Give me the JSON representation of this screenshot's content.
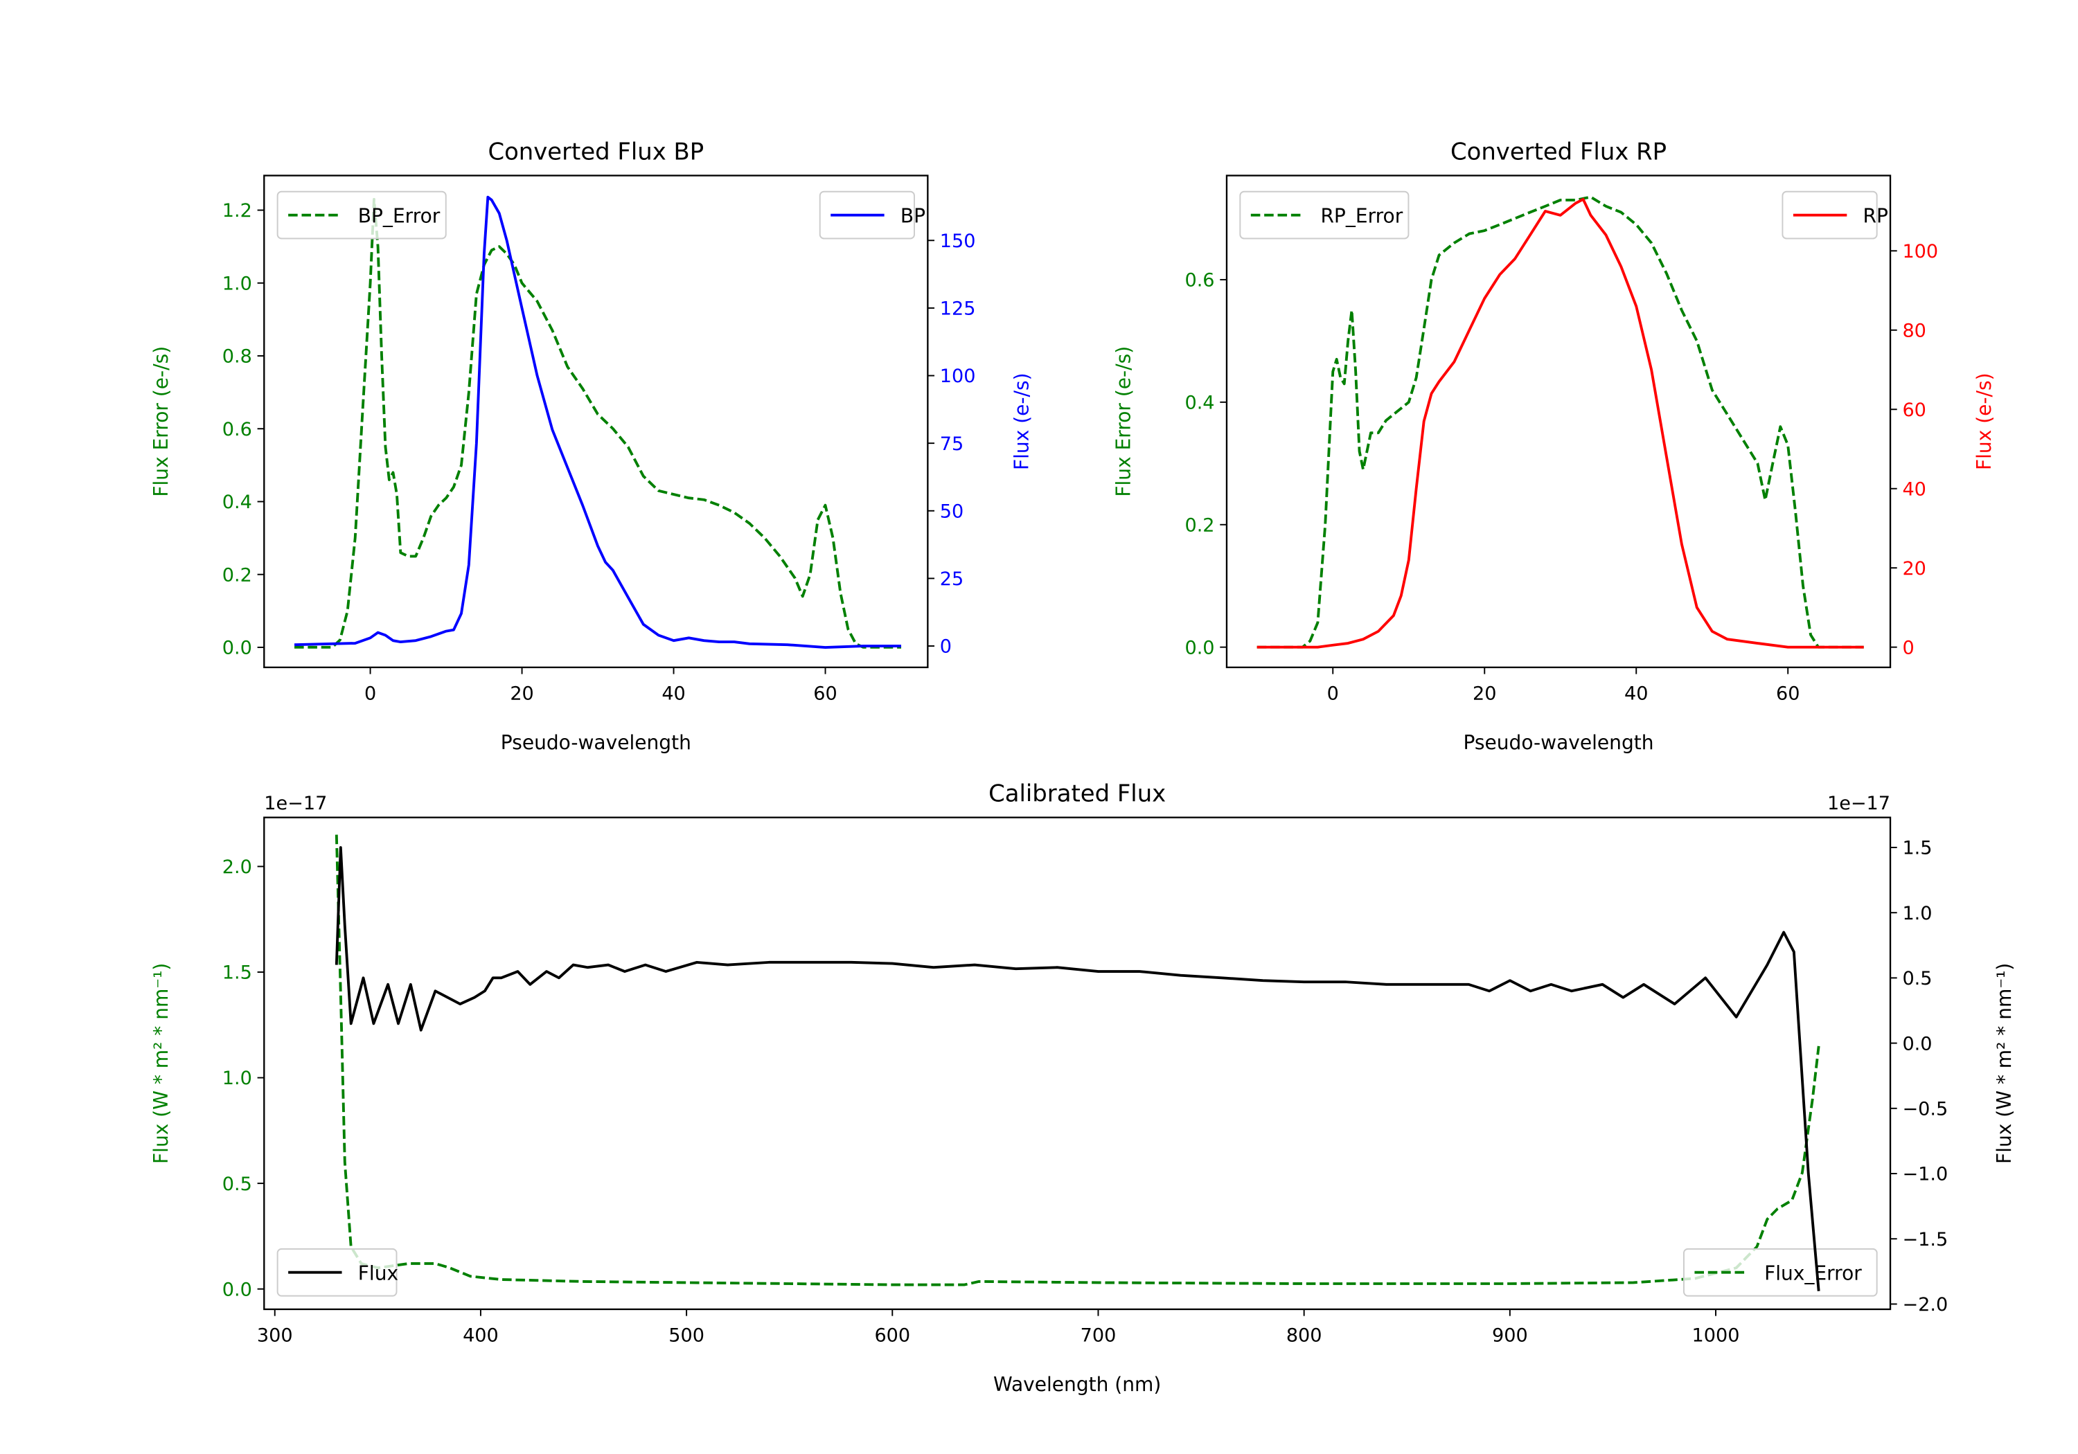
{
  "chart_data": [
    {
      "type": "line",
      "title": "Converted Flux BP",
      "xlabel": "Pseudo-wavelength",
      "ylabel_left": "Flux Error (e-/s)",
      "ylabel_right": "Flux (e-/s)",
      "left_color": "#008000",
      "right_color": "#0000ff",
      "xlim": [
        -14,
        73.5
      ],
      "ylim_left": [
        -0.055,
        1.295
      ],
      "ylim_right": [
        -7.9,
        174
      ],
      "xticks": [
        {
          "v": 0,
          "label": "0"
        },
        {
          "v": 20,
          "label": "20"
        },
        {
          "v": 40,
          "label": "40"
        },
        {
          "v": 60,
          "label": "60"
        }
      ],
      "yticks_left": [
        {
          "v": 0,
          "label": "0.0"
        },
        {
          "v": 0.2,
          "label": "0.2"
        },
        {
          "v": 0.4,
          "label": "0.4"
        },
        {
          "v": 0.6,
          "label": "0.6"
        },
        {
          "v": 0.8,
          "label": "0.8"
        },
        {
          "v": 1.0,
          "label": "1.0"
        },
        {
          "v": 1.2,
          "label": "1.2"
        }
      ],
      "yticks_right": [
        {
          "v": 0,
          "label": "0"
        },
        {
          "v": 25,
          "label": "25"
        },
        {
          "v": 50,
          "label": "50"
        },
        {
          "v": 75,
          "label": "75"
        },
        {
          "v": 100,
          "label": "100"
        },
        {
          "v": 125,
          "label": "125"
        },
        {
          "v": 150,
          "label": "150"
        }
      ],
      "offset_left": "",
      "offset_right": "",
      "series": [
        {
          "name": "BP_Error",
          "axis": "left",
          "color": "#008000",
          "style": "dashed",
          "legend": "upper-left",
          "x": [
            -10,
            -5,
            -4,
            -3,
            -2,
            -1,
            0,
            0.5,
            1,
            1.5,
            2,
            2.5,
            3,
            3.5,
            4,
            5,
            6,
            7,
            8,
            9,
            10,
            11,
            12,
            13,
            14,
            15,
            16,
            17,
            18,
            19,
            20,
            22,
            24,
            26,
            28,
            30,
            32,
            34,
            36,
            38,
            40,
            42,
            44,
            46,
            48,
            50,
            52,
            54,
            56,
            57,
            58,
            59,
            60,
            61,
            62,
            63,
            64,
            65,
            70
          ],
          "y": [
            0,
            0,
            0.02,
            0.1,
            0.3,
            0.65,
            1.0,
            1.23,
            1.1,
            0.8,
            0.55,
            0.46,
            0.48,
            0.42,
            0.26,
            0.25,
            0.25,
            0.3,
            0.36,
            0.39,
            0.41,
            0.44,
            0.5,
            0.7,
            0.97,
            1.05,
            1.09,
            1.1,
            1.08,
            1.05,
            1.0,
            0.95,
            0.87,
            0.77,
            0.71,
            0.64,
            0.6,
            0.55,
            0.47,
            0.43,
            0.42,
            0.41,
            0.405,
            0.39,
            0.37,
            0.34,
            0.3,
            0.25,
            0.19,
            0.14,
            0.2,
            0.35,
            0.39,
            0.3,
            0.15,
            0.05,
            0.01,
            0,
            0
          ]
        },
        {
          "name": "BP",
          "axis": "right",
          "color": "#0000ff",
          "style": "solid",
          "legend": "upper-right",
          "x": [
            -10,
            -2,
            0,
            1,
            2,
            3,
            4,
            6,
            8,
            10,
            11,
            12,
            13,
            14,
            15,
            15.5,
            16,
            17,
            18,
            20,
            22,
            24,
            26,
            28,
            30,
            31,
            32,
            34,
            36,
            38,
            40,
            42,
            44,
            46,
            48,
            50,
            55,
            60,
            65,
            70
          ],
          "y": [
            0.5,
            1,
            3,
            5,
            4,
            2,
            1.5,
            2,
            3.5,
            5.5,
            6,
            12,
            30,
            75,
            145,
            166,
            165,
            160,
            150,
            125,
            100,
            80,
            66,
            52,
            37,
            31,
            28,
            18,
            8,
            4,
            2,
            3,
            2,
            1.5,
            1.5,
            0.8,
            0.5,
            -0.5,
            0,
            0
          ]
        }
      ]
    },
    {
      "type": "line",
      "title": "Converted Flux RP",
      "xlabel": "Pseudo-wavelength",
      "ylabel_left": "Flux Error (e-/s)",
      "ylabel_right": "Flux (e-/s)",
      "left_color": "#008000",
      "right_color": "#ff0000",
      "xlim": [
        -14,
        73.5
      ],
      "ylim_left": [
        -0.033,
        0.77
      ],
      "ylim_right": [
        -5.1,
        119
      ],
      "xticks": [
        {
          "v": 0,
          "label": "0"
        },
        {
          "v": 20,
          "label": "20"
        },
        {
          "v": 40,
          "label": "40"
        },
        {
          "v": 60,
          "label": "60"
        }
      ],
      "yticks_left": [
        {
          "v": 0,
          "label": "0.0"
        },
        {
          "v": 0.2,
          "label": "0.2"
        },
        {
          "v": 0.4,
          "label": "0.4"
        },
        {
          "v": 0.6,
          "label": "0.6"
        }
      ],
      "yticks_right": [
        {
          "v": 0,
          "label": "0"
        },
        {
          "v": 20,
          "label": "20"
        },
        {
          "v": 40,
          "label": "40"
        },
        {
          "v": 60,
          "label": "60"
        },
        {
          "v": 80,
          "label": "80"
        },
        {
          "v": 100,
          "label": "100"
        }
      ],
      "offset_left": "",
      "offset_right": "",
      "series": [
        {
          "name": "RP_Error",
          "axis": "left",
          "color": "#008000",
          "style": "dashed",
          "legend": "upper-left",
          "x": [
            -10,
            -4,
            -3,
            -2,
            -1,
            0,
            0.5,
            1,
            1.5,
            2,
            2.5,
            3,
            3.5,
            4,
            5,
            6,
            7,
            8,
            9,
            10,
            11,
            12,
            13,
            14,
            16,
            18,
            20,
            22,
            24,
            26,
            28,
            30,
            32,
            34,
            36,
            38,
            40,
            42,
            44,
            46,
            48,
            50,
            52,
            54,
            56,
            57,
            58,
            59,
            60,
            61,
            62,
            63,
            64,
            70
          ],
          "y": [
            0,
            0,
            0.01,
            0.04,
            0.2,
            0.45,
            0.47,
            0.44,
            0.43,
            0.5,
            0.55,
            0.45,
            0.32,
            0.29,
            0.35,
            0.35,
            0.37,
            0.38,
            0.39,
            0.4,
            0.44,
            0.52,
            0.6,
            0.64,
            0.66,
            0.675,
            0.68,
            0.69,
            0.7,
            0.71,
            0.72,
            0.73,
            0.73,
            0.735,
            0.72,
            0.71,
            0.69,
            0.66,
            0.61,
            0.55,
            0.5,
            0.42,
            0.38,
            0.34,
            0.3,
            0.24,
            0.3,
            0.36,
            0.33,
            0.22,
            0.1,
            0.02,
            0,
            0
          ]
        },
        {
          "name": "RP",
          "axis": "right",
          "color": "#ff0000",
          "style": "solid",
          "legend": "upper-right",
          "x": [
            -10,
            -2,
            0,
            2,
            4,
            6,
            8,
            9,
            10,
            11,
            12,
            13,
            14,
            16,
            18,
            20,
            22,
            24,
            26,
            28,
            30,
            32,
            33,
            34,
            36,
            38,
            40,
            42,
            44,
            46,
            48,
            50,
            52,
            56,
            60,
            70
          ],
          "y": [
            0,
            0,
            0.5,
            1,
            2,
            4,
            8,
            13,
            22,
            40,
            57,
            64,
            67,
            72,
            80,
            88,
            94,
            98,
            104,
            110,
            109,
            112,
            113,
            109,
            104,
            96,
            86,
            70,
            48,
            26,
            10,
            4,
            2,
            1,
            0,
            0
          ]
        }
      ]
    },
    {
      "type": "line",
      "title": "Calibrated Flux",
      "xlabel": "Wavelength (nm)",
      "ylabel_left": "Flux (W * m² * nm⁻¹)",
      "ylabel_right": "Flux (W * m² * nm⁻¹)",
      "left_color": "#008000",
      "right_color": "#000000",
      "xlim": [
        294.8,
        1084.8
      ],
      "ylim_left": [
        -0.096,
        2.232
      ],
      "ylim_right": [
        -2.04,
        1.73
      ],
      "xticks": [
        {
          "v": 300,
          "label": "300"
        },
        {
          "v": 400,
          "label": "400"
        },
        {
          "v": 500,
          "label": "500"
        },
        {
          "v": 600,
          "label": "600"
        },
        {
          "v": 700,
          "label": "700"
        },
        {
          "v": 800,
          "label": "800"
        },
        {
          "v": 900,
          "label": "900"
        },
        {
          "v": 1000,
          "label": "1000"
        }
      ],
      "yticks_left": [
        {
          "v": 0,
          "label": "0.0"
        },
        {
          "v": 0.5,
          "label": "0.5"
        },
        {
          "v": 1.0,
          "label": "1.0"
        },
        {
          "v": 1.5,
          "label": "1.5"
        },
        {
          "v": 2.0,
          "label": "2.0"
        }
      ],
      "yticks_right": [
        {
          "v": -2.0,
          "label": "−2.0"
        },
        {
          "v": -1.5,
          "label": "−1.5"
        },
        {
          "v": -1.0,
          "label": "−1.0"
        },
        {
          "v": -0.5,
          "label": "−0.5"
        },
        {
          "v": 0,
          "label": "0.0"
        },
        {
          "v": 0.5,
          "label": "0.5"
        },
        {
          "v": 1.0,
          "label": "1.0"
        },
        {
          "v": 1.5,
          "label": "1.5"
        }
      ],
      "offset_left": "1e−17",
      "offset_right": "1e−17",
      "series": [
        {
          "name": "Flux_Error",
          "axis": "left",
          "color": "#008000",
          "style": "dashed",
          "legend": "lower-right",
          "x": [
            330,
            332,
            334,
            337,
            342,
            350,
            365,
            378,
            385,
            395,
            410,
            450,
            500,
            550,
            600,
            635,
            642,
            700,
            800,
            900,
            960,
            990,
            1010,
            1020,
            1025,
            1030,
            1037,
            1042,
            1047,
            1050
          ],
          "y": [
            2.15,
            1.4,
            0.6,
            0.2,
            0.12,
            0.1,
            0.12,
            0.12,
            0.1,
            0.06,
            0.045,
            0.035,
            0.03,
            0.025,
            0.02,
            0.02,
            0.035,
            0.03,
            0.025,
            0.025,
            0.03,
            0.05,
            0.1,
            0.2,
            0.33,
            0.38,
            0.42,
            0.55,
            0.9,
            1.15
          ]
        },
        {
          "name": "Flux",
          "axis": "right",
          "color": "#000000",
          "style": "solid",
          "legend": "lower-left",
          "x": [
            330,
            332,
            334,
            337,
            343,
            348,
            355,
            360,
            366,
            371,
            378,
            390,
            397,
            402,
            406,
            410,
            418,
            424,
            432,
            438,
            445,
            452,
            462,
            470,
            480,
            490,
            505,
            520,
            540,
            560,
            580,
            600,
            620,
            640,
            660,
            680,
            700,
            720,
            740,
            760,
            780,
            800,
            820,
            840,
            860,
            880,
            890,
            900,
            910,
            920,
            930,
            945,
            955,
            965,
            980,
            995,
            1010,
            1025,
            1033,
            1038,
            1045,
            1050
          ],
          "y": [
            0.6,
            1.5,
            0.9,
            0.15,
            0.5,
            0.15,
            0.45,
            0.15,
            0.45,
            0.1,
            0.4,
            0.3,
            0.35,
            0.4,
            0.5,
            0.5,
            0.55,
            0.45,
            0.55,
            0.5,
            0.6,
            0.58,
            0.6,
            0.55,
            0.6,
            0.55,
            0.62,
            0.6,
            0.62,
            0.62,
            0.62,
            0.61,
            0.58,
            0.6,
            0.57,
            0.58,
            0.55,
            0.55,
            0.52,
            0.5,
            0.48,
            0.47,
            0.47,
            0.45,
            0.45,
            0.45,
            0.4,
            0.48,
            0.4,
            0.45,
            0.4,
            0.45,
            0.35,
            0.45,
            0.3,
            0.5,
            0.2,
            0.6,
            0.85,
            0.7,
            -1.0,
            -1.9
          ]
        }
      ]
    }
  ]
}
